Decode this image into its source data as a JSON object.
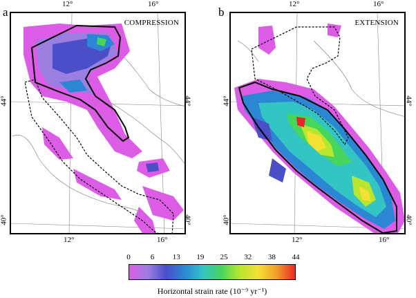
{
  "panels": [
    {
      "letter": "a",
      "title": "COMPRESSION",
      "ticks": {
        "top_left": "12°",
        "top_right": "16°",
        "bottom_left": "12°",
        "bottom_right": "16°",
        "left_upper": "44°",
        "left_lower": "40°",
        "right_upper": "44°",
        "right_lower": "40°"
      }
    },
    {
      "letter": "b",
      "title": "EXTENSION",
      "ticks": {
        "top_left": "12°",
        "top_right": "16°",
        "bottom_left": "12°",
        "bottom_right": "16°",
        "left_upper": "44°",
        "left_lower": "40°",
        "right_upper": "44°",
        "right_lower": "40°"
      }
    }
  ],
  "colorbar": {
    "ticks": [
      "0",
      "6",
      "13",
      "19",
      "25",
      "32",
      "38",
      "44"
    ],
    "title": "Horizontal strain rate (10⁻⁹ yr⁻¹)",
    "colors": [
      "#dc5ce6",
      "#9a7fe0",
      "#4a4fc8",
      "#2b87d4",
      "#33c4c4",
      "#47d65c",
      "#b8e62e",
      "#f2e033",
      "#f0a02a",
      "#e8262a"
    ]
  }
}
